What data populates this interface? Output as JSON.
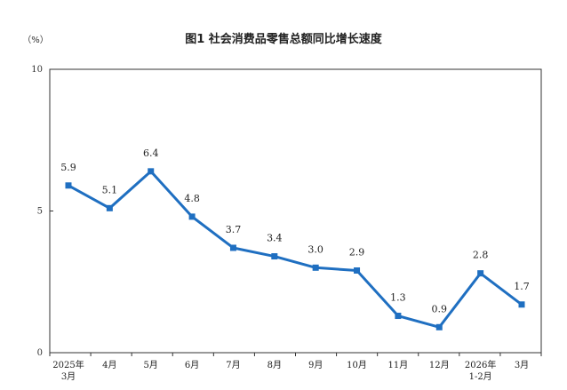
{
  "chart_data": {
    "type": "line",
    "title": "图1  社会消费品零售总额同比增长速度",
    "ylabel": "（%）",
    "xlabel": "",
    "ylim": [
      0,
      10
    ],
    "yticks": [
      "0",
      "5",
      "10"
    ],
    "categories": [
      [
        "2025年",
        "3月"
      ],
      [
        "4月"
      ],
      [
        "5月"
      ],
      [
        "6月"
      ],
      [
        "7月"
      ],
      [
        "8月"
      ],
      [
        "9月"
      ],
      [
        "10月"
      ],
      [
        "11月"
      ],
      [
        "12月"
      ],
      [
        "2026年",
        "1-2月"
      ],
      [
        "3月"
      ]
    ],
    "values": [
      5.9,
      5.1,
      6.4,
      4.8,
      3.7,
      3.4,
      3.0,
      2.9,
      1.3,
      0.9,
      2.8,
      1.7
    ],
    "data_labels": [
      "5.9",
      "5.1",
      "6.4",
      "4.8",
      "3.7",
      "3.4",
      "3.0",
      "2.9",
      "1.3",
      "0.9",
      "2.8",
      "1.7"
    ],
    "grid": false,
    "legend": "none",
    "colors": {
      "line": "#1f6fc1",
      "axis": "#333333",
      "text": "#222222"
    }
  }
}
